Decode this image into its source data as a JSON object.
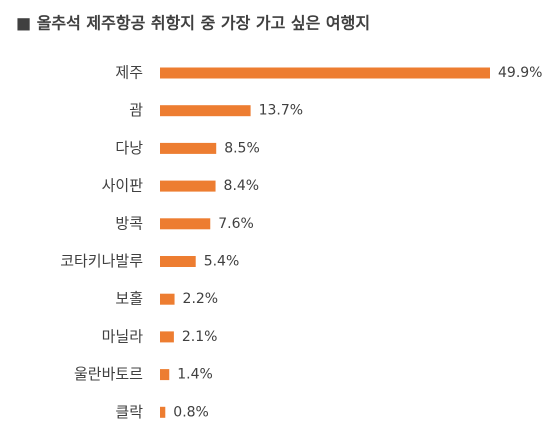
{
  "chart_data": {
    "type": "bar",
    "orientation": "horizontal",
    "title": "■ 올추석 제주항공 취항지 중 가장 가고 싶은 여행지",
    "categories": [
      "제주",
      "괌",
      "다낭",
      "사이판",
      "방콕",
      "코타키나발루",
      "보홀",
      "마닐라",
      "울란바토르",
      "클락"
    ],
    "values": [
      49.9,
      13.7,
      8.5,
      8.4,
      7.6,
      5.4,
      2.2,
      2.1,
      1.4,
      0.8
    ],
    "value_labels": [
      "49.9%",
      "13.7%",
      "8.5%",
      "8.4%",
      "7.6%",
      "5.4%",
      "2.2%",
      "2.1%",
      "1.4%",
      "0.8%"
    ],
    "color": "#ed7d31"
  }
}
